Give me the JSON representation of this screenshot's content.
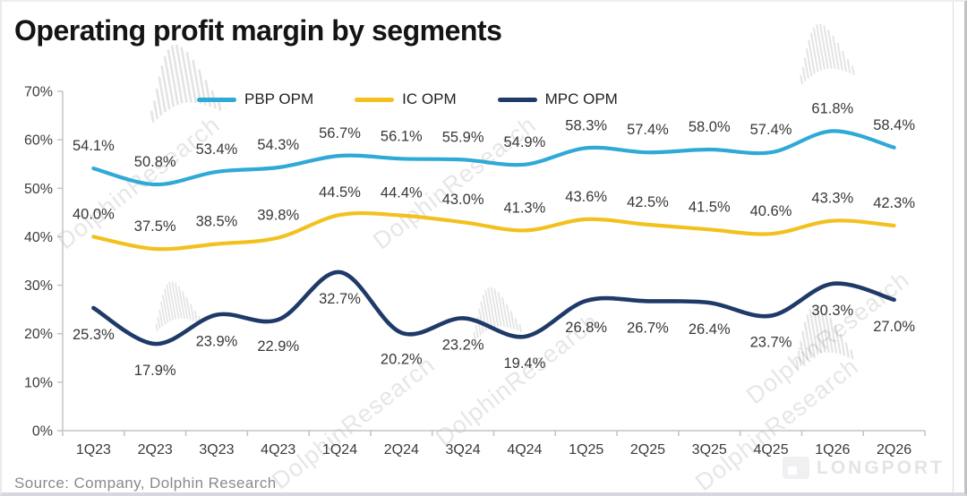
{
  "title": "Operating profit margin by segments",
  "source": "Source:  Company, Dolphin Research",
  "watermark": {
    "text": "DolphinResearch",
    "logo": "LONGPORT"
  },
  "chart_data": {
    "type": "line",
    "title": "Operating profit margin by segments",
    "categories": [
      "1Q23",
      "2Q23",
      "3Q23",
      "4Q23",
      "1Q24",
      "2Q24",
      "3Q24",
      "4Q24",
      "1Q25",
      "2Q25",
      "3Q25",
      "4Q25",
      "1Q26",
      "2Q26"
    ],
    "series": [
      {
        "name": "PBP OPM",
        "color": "#2FA9D6",
        "label_side": "above",
        "values": [
          54.1,
          50.8,
          53.4,
          54.3,
          56.7,
          56.1,
          55.9,
          54.9,
          58.3,
          57.4,
          58.0,
          57.4,
          61.8,
          58.4
        ]
      },
      {
        "name": "IC OPM",
        "color": "#F2C11E",
        "label_side": "above",
        "values": [
          40.0,
          37.5,
          38.5,
          39.8,
          44.5,
          44.4,
          43.0,
          41.3,
          43.6,
          42.5,
          41.5,
          40.6,
          43.3,
          42.3
        ]
      },
      {
        "name": "MPC OPM",
        "color": "#1F3A68",
        "label_side": "below",
        "values": [
          25.3,
          17.9,
          23.9,
          22.9,
          32.7,
          20.2,
          23.2,
          19.4,
          26.8,
          26.7,
          26.4,
          23.7,
          30.3,
          27.0
        ]
      }
    ],
    "xlabel": "",
    "ylabel": "",
    "ylim": [
      0,
      70
    ],
    "y_ticks": [
      "0%",
      "10%",
      "20%",
      "30%",
      "40%",
      "50%",
      "60%",
      "70%"
    ],
    "value_suffix": "%",
    "grid": false,
    "legend_position": "top"
  }
}
